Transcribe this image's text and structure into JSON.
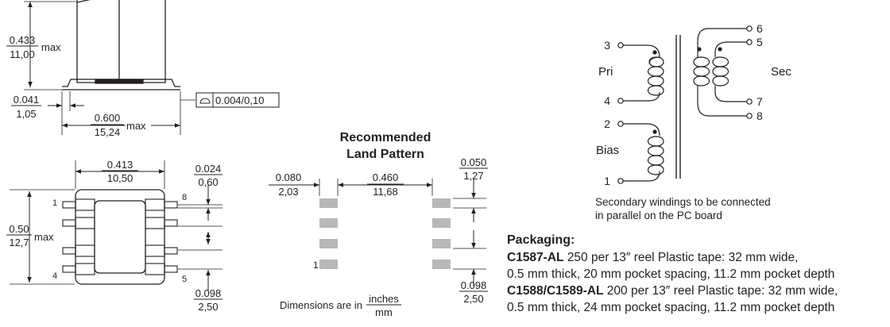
{
  "dims": {
    "height_in": "0.433",
    "height_mm": "11,00",
    "max": "max",
    "standoff_in": "0.041",
    "standoff_mm": "1,05",
    "coplanarity_val": "0.004/0,10",
    "length_in": "0.600",
    "length_mm": "15,24",
    "body_width_in": "0.413",
    "body_width_mm": "10,50",
    "lead_pitch_in": "0.024",
    "lead_pitch_mm": "0,60",
    "overall_width_in": "0.50",
    "overall_width_mm": "12,7",
    "pitch_in": "0.098",
    "pitch_mm": "2,50",
    "pin_labels": [
      "1",
      "4",
      "5",
      "8"
    ]
  },
  "land_pattern": {
    "title_line1": "Recommended",
    "title_line2": "Land Pattern",
    "pad_width_in": "0.080",
    "pad_width_mm": "2,03",
    "gap_in": "0.460",
    "gap_mm": "11,68",
    "pad_height_in": "0.050",
    "pad_height_mm": "1,27",
    "pitch_in": "0.098",
    "pitch_mm": "2,50",
    "pin1": "1",
    "units_prefix": "Dimensions are in",
    "units_in": "inches",
    "units_mm": "mm"
  },
  "schematic": {
    "pins_left": [
      "3",
      "4",
      "2",
      "1"
    ],
    "pins_right": [
      "6",
      "5",
      "7",
      "8"
    ],
    "label_pri": "Pri",
    "label_sec": "Sec",
    "label_bias": "Bias",
    "note_line1": "Secondary windings to be connected",
    "note_line2": "in parallel on the PC board"
  },
  "packaging": {
    "heading": "Packaging:",
    "items": [
      {
        "part": "C1587-AL",
        "line1": "250 per 13″ reel  Plastic tape: 32 mm wide,",
        "line2": "0.5 mm thick, 20 mm pocket spacing, 11.2 mm pocket depth"
      },
      {
        "part": "C1588/C1589-AL",
        "line1": "200 per 13″ reel  Plastic tape: 32 mm wide,",
        "line2": "0.5 mm thick, 24 mm pocket spacing, 11.2 mm pocket depth"
      }
    ]
  }
}
